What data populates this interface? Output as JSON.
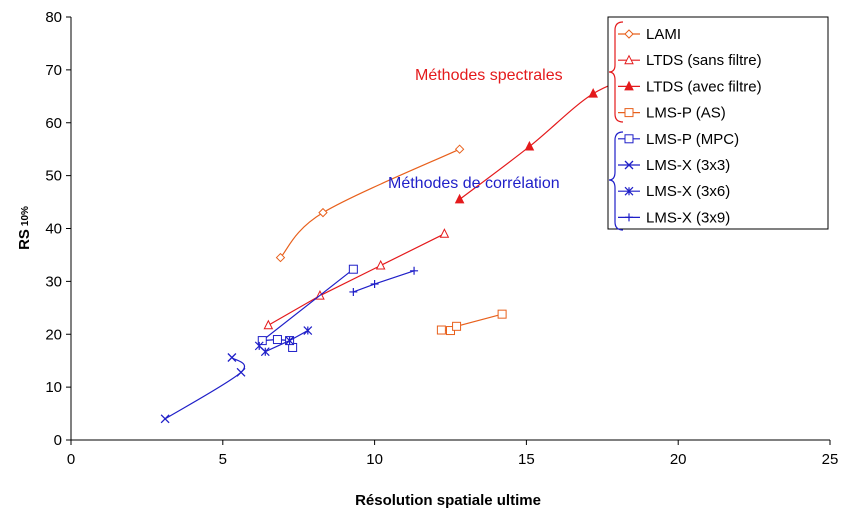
{
  "chart_data": {
    "type": "scatter",
    "title": "",
    "xlabel": "Résolution spatiale ultime",
    "ylabel_main": "RS",
    "ylabel_sub": "10%",
    "xlim": [
      0,
      25
    ],
    "ylim": [
      0,
      80
    ],
    "xticks": [
      0,
      5,
      10,
      15,
      20,
      25
    ],
    "yticks": [
      0,
      10,
      20,
      30,
      40,
      50,
      60,
      70,
      80
    ],
    "grid": false,
    "legend_position": "top-right",
    "series": [
      {
        "name": "LAMI",
        "color": "#e8601c",
        "marker": "diamond-open",
        "smooth": true,
        "points": [
          [
            6.9,
            34.5
          ],
          [
            8.3,
            43
          ],
          [
            12.8,
            55
          ]
        ]
      },
      {
        "name": "LTDS (sans filtre)",
        "color": "#e41a1c",
        "marker": "triangle-open",
        "smooth": false,
        "points": [
          [
            6.5,
            21.7
          ],
          [
            8.2,
            27.3
          ],
          [
            10.2,
            33
          ],
          [
            12.3,
            39
          ]
        ]
      },
      {
        "name": "LTDS (avec filtre)",
        "color": "#e41a1c",
        "marker": "triangle-filled",
        "smooth": true,
        "points": [
          [
            12.8,
            45.5
          ],
          [
            15.1,
            55.5
          ],
          [
            17.2,
            65.5
          ],
          [
            19,
            69.5
          ]
        ]
      },
      {
        "name": "LMS-P (AS)",
        "color": "#e8601c",
        "marker": "square-open",
        "smooth": false,
        "points": [
          [
            12.2,
            20.8
          ],
          [
            12.5,
            20.7
          ],
          [
            12.7,
            21.5
          ],
          [
            14.2,
            23.8
          ]
        ]
      },
      {
        "name": "LMS-P (MPC)",
        "color": "#1f1fc8",
        "marker": "square-open",
        "smooth": false,
        "points": [
          [
            7.3,
            17.5
          ],
          [
            7.2,
            18.8
          ],
          [
            6.8,
            19
          ],
          [
            6.3,
            18.8
          ],
          [
            9.3,
            32.3
          ]
        ]
      },
      {
        "name": "LMS-X (3x3)",
        "color": "#1f1fc8",
        "marker": "x",
        "smooth": true,
        "points": [
          [
            3.1,
            4
          ],
          [
            5.6,
            12.8
          ],
          [
            5.3,
            15.6
          ]
        ]
      },
      {
        "name": "LMS-X (3x6)",
        "color": "#1f1fc8",
        "marker": "asterisk",
        "smooth": false,
        "points": [
          [
            6.2,
            17.8
          ],
          [
            6.4,
            16.7
          ],
          [
            7.2,
            18.8
          ],
          [
            7.8,
            20.7
          ]
        ]
      },
      {
        "name": "LMS-X (3x9)",
        "color": "#1f1fc8",
        "marker": "plus",
        "smooth": false,
        "points": [
          [
            9.3,
            28
          ],
          [
            10,
            29.5
          ],
          [
            11.3,
            32
          ]
        ]
      }
    ],
    "annotations": [
      {
        "text": "Méthodes spectrales",
        "color": "#e41a1c"
      },
      {
        "text": "Méthodes de corrélation",
        "color": "#1f1fc8"
      }
    ]
  }
}
